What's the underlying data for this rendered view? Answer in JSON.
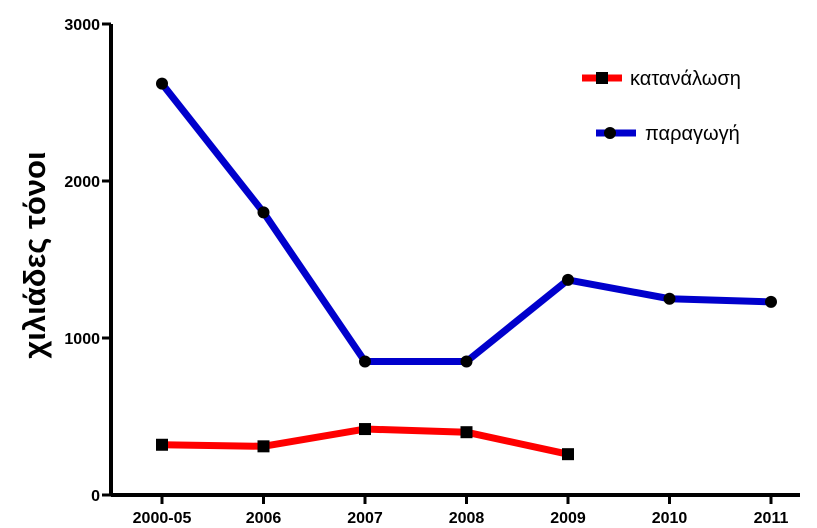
{
  "chart_data": {
    "type": "line",
    "categories": [
      "2000-05",
      "2006",
      "2007",
      "2008",
      "2009",
      "2010",
      "2011"
    ],
    "ylabel": "χιλιάδες τόνοι",
    "xlabel": "",
    "title": "",
    "ylim": [
      0,
      3000
    ],
    "yticks": [
      0,
      1000,
      2000,
      3000
    ],
    "grid": false,
    "legend_position": "top-right",
    "series": [
      {
        "name": "κατανάλωση",
        "color": "#ff0000",
        "marker": "square",
        "values": [
          320,
          310,
          420,
          400,
          260,
          null,
          null
        ]
      },
      {
        "name": "παραγωγή",
        "color": "#0000cc",
        "marker": "circle",
        "values": [
          2620,
          1800,
          850,
          850,
          1370,
          1250,
          1230
        ]
      }
    ]
  }
}
